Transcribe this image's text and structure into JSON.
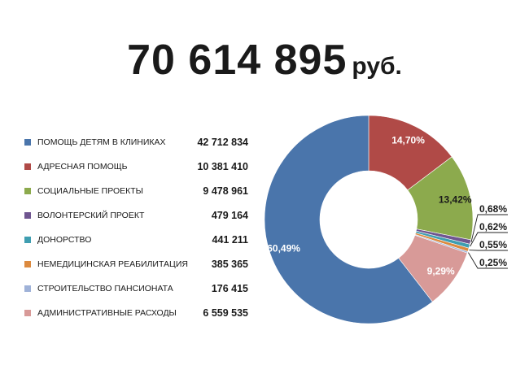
{
  "header": {
    "total_amount": "70 614 895",
    "total_unit": "руб."
  },
  "chart_data": {
    "type": "pie",
    "donut": true,
    "legend_position": "left",
    "categories": [
      "ПОМОЩЬ ДЕТЯМ В КЛИНИКАХ",
      "АДРЕСНАЯ ПОМОЩЬ",
      "СОЦИАЛЬНЫЕ ПРОЕКТЫ",
      "ВОЛОНТЕРСКИЙ ПРОЕКТ",
      "ДОНОРСТВО",
      "НЕМЕДИЦИНСКАЯ РЕАБИЛИТАЦИЯ",
      "СТРОИТЕЛЬСТВО ПАНСИОНАТА",
      "АДМИНИСТРАТИВНЫЕ РАСХОДЫ"
    ],
    "values": [
      42712834,
      10381410,
      9478961,
      479164,
      441211,
      385365,
      176415,
      6559535
    ],
    "value_labels": [
      "42 712 834",
      "10 381 410",
      "9 478 961",
      "479 164",
      "441 211",
      "385 365",
      "176 415",
      "6 559 535"
    ],
    "percent_values": [
      60.49,
      14.7,
      13.42,
      0.68,
      0.62,
      0.55,
      0.25,
      9.29
    ],
    "percent_labels": [
      "60,49%",
      "14,70%",
      "13,42%",
      "0,68%",
      "0,62%",
      "0,55%",
      "0,25%",
      "9,29%"
    ],
    "colors": [
      "#4a75ab",
      "#b04a47",
      "#8caa4d",
      "#6f5590",
      "#3f9eb1",
      "#dc8a3f",
      "#9fb2d8",
      "#d89a98"
    ]
  }
}
